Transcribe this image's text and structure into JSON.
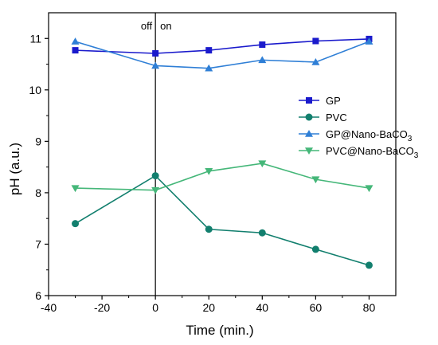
{
  "chart_data": {
    "type": "line",
    "xlabel": "Time (min.)",
    "ylabel": "pH (a.u.)",
    "xlim": [
      -40,
      90
    ],
    "ylim": [
      6,
      11.5
    ],
    "xticks": [
      -40,
      -20,
      0,
      20,
      40,
      60,
      80
    ],
    "yticks": [
      6,
      7,
      8,
      9,
      10,
      11
    ],
    "legend_position": "right",
    "vline": {
      "x": 0,
      "label_left": "off",
      "label_right": "on"
    },
    "series": [
      {
        "name": "GP",
        "color": "#1a1acc",
        "marker": "square",
        "x": [
          -30,
          0,
          20,
          40,
          60,
          80
        ],
        "y": [
          10.77,
          10.71,
          10.77,
          10.88,
          10.95,
          10.99
        ]
      },
      {
        "name": "PVC",
        "color": "#127f6e",
        "marker": "circle",
        "x": [
          -30,
          0,
          20,
          40,
          60,
          80
        ],
        "y": [
          7.4,
          8.33,
          7.29,
          7.22,
          6.9,
          6.59
        ]
      },
      {
        "name": "GP@Nano-BaCO",
        "name_sub": "3",
        "color": "#2f7fd6",
        "marker": "triangle-up",
        "x": [
          -30,
          0,
          20,
          40,
          60,
          80
        ],
        "y": [
          10.94,
          10.47,
          10.42,
          10.58,
          10.54,
          10.94
        ]
      },
      {
        "name": "PVC@Nano-BaCO",
        "name_sub": "3",
        "color": "#45b779",
        "marker": "triangle-down",
        "x": [
          -30,
          0,
          20,
          40,
          60,
          80
        ],
        "y": [
          8.09,
          8.05,
          8.42,
          8.57,
          8.26,
          8.09
        ]
      }
    ]
  }
}
